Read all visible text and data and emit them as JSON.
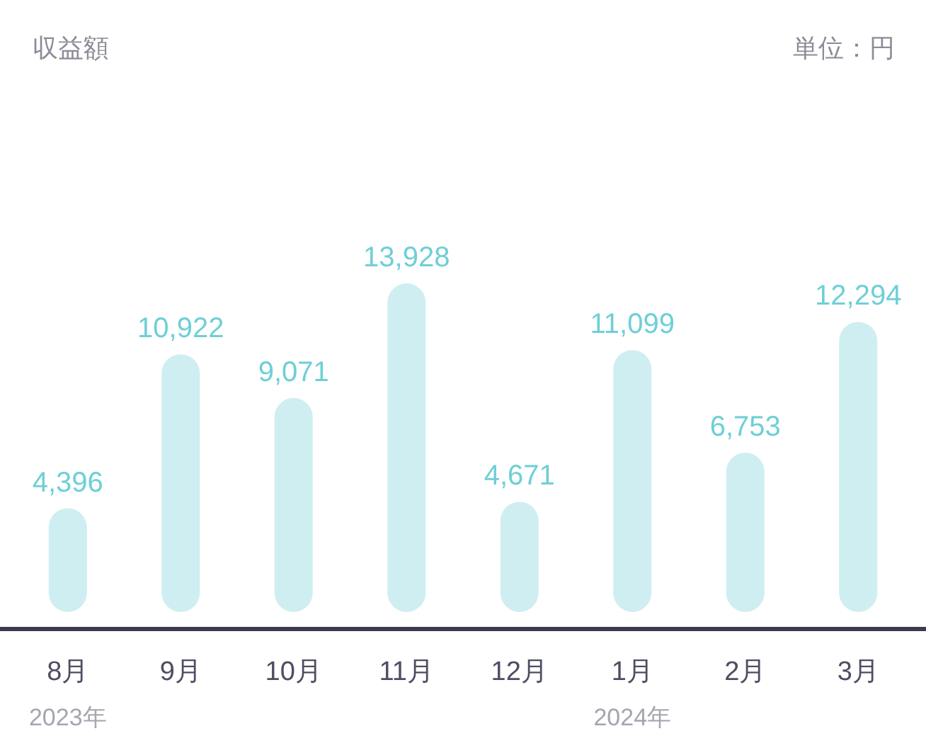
{
  "chart_data": {
    "type": "bar",
    "title": "収益額",
    "categories": [
      "8月",
      "9月",
      "10月",
      "11月",
      "12月",
      "1月",
      "2月",
      "3月"
    ],
    "values": [
      4396,
      10922,
      9071,
      13928,
      4671,
      11099,
      6753,
      12294
    ],
    "value_labels": [
      "4,396",
      "10,922",
      "9,071",
      "13,928",
      "4,671",
      "11,099",
      "6,753",
      "12,294"
    ],
    "color": "#cfeef1",
    "annotations": [
      "単位：円",
      "2023年",
      "2024年"
    ]
  }
}
